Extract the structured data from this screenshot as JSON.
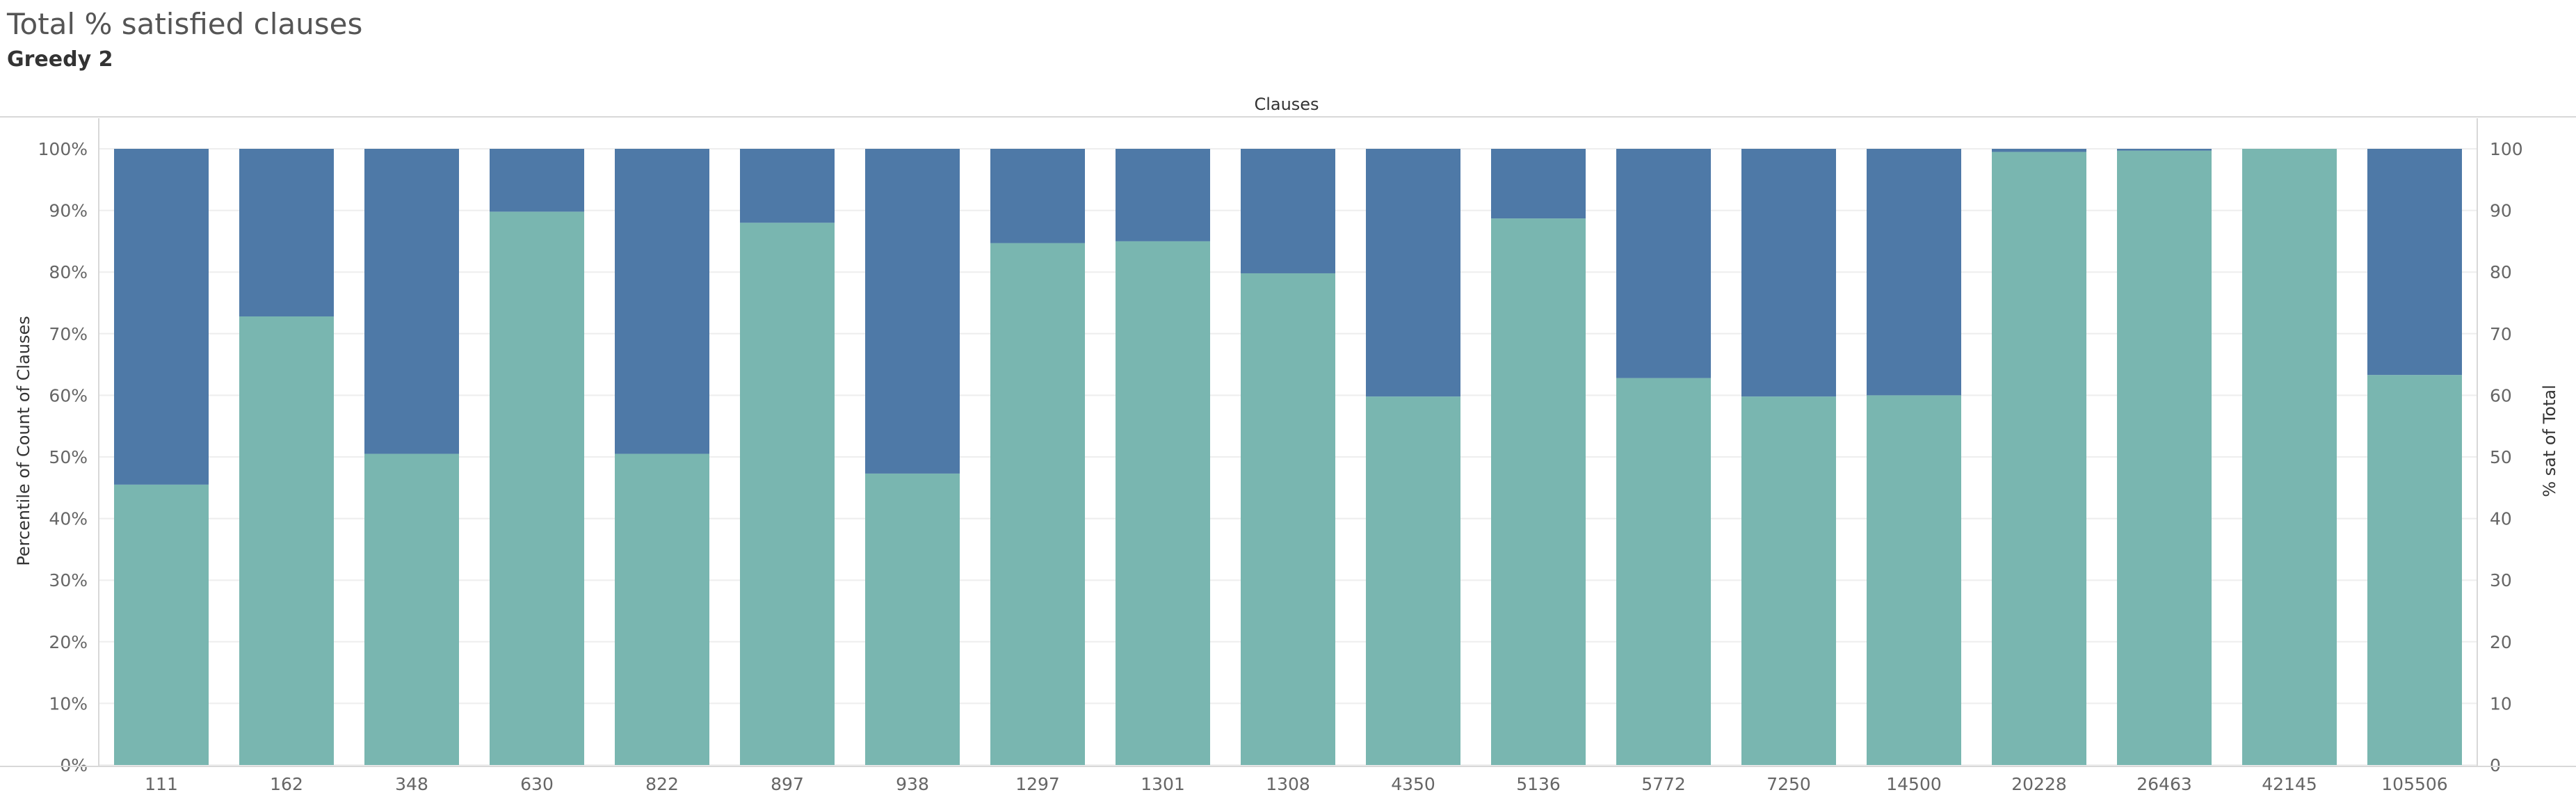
{
  "title": "Total % satisfied clauses",
  "subtitle": "Greedy 2",
  "colors": {
    "satisfied": "#79b6b0",
    "unsatisfied": "#4e79a7",
    "grid": "#eeeeee",
    "axis": "#d8d8d8",
    "tick_text": "#666666",
    "label_text": "#333333"
  },
  "chart_data": {
    "type": "bar",
    "stacked": true,
    "column_header": "Clauses",
    "ylabel": "Percentile of Count of Clauses",
    "ylabel_right": "% sat of Total",
    "ylim": [
      0,
      100
    ],
    "yticks_left": [
      "0%",
      "10%",
      "20%",
      "30%",
      "40%",
      "50%",
      "60%",
      "70%",
      "80%",
      "90%",
      "100%"
    ],
    "yticks_right": [
      "0",
      "10",
      "20",
      "30",
      "40",
      "50",
      "60",
      "70",
      "80",
      "90",
      "100"
    ],
    "grid": true,
    "categories": [
      "111",
      "162",
      "348",
      "630",
      "822",
      "897",
      "938",
      "1297",
      "1301",
      "1308",
      "4350",
      "5136",
      "5772",
      "7250",
      "14500",
      "20228",
      "26463",
      "42145",
      "105506"
    ],
    "series": [
      {
        "key": "satisfied",
        "values": [
          45.5,
          72.8,
          50.5,
          89.8,
          50.5,
          88.0,
          47.3,
          84.7,
          85.0,
          79.8,
          59.8,
          88.7,
          62.8,
          59.8,
          60.0,
          99.5,
          99.7,
          100.0,
          63.3
        ]
      },
      {
        "key": "unsatisfied",
        "values": [
          54.5,
          27.2,
          49.5,
          10.2,
          49.5,
          12.0,
          52.7,
          15.3,
          15.0,
          20.2,
          40.2,
          11.3,
          37.2,
          40.2,
          40.0,
          0.5,
          0.3,
          0.0,
          36.7
        ]
      }
    ]
  }
}
